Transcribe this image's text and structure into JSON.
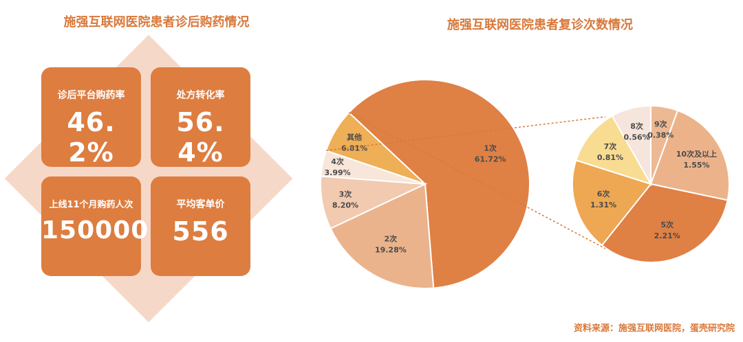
{
  "left_title": "施强互联网医院患者诊后购药情况",
  "right_title": "施强互联网医院患者复诊次数情况",
  "cards": [
    {
      "label": "诊后平台购药率",
      "value": "46. 2%"
    },
    {
      "label": "处方转化率",
      "value": "56. 4%"
    },
    {
      "label": "上线11个月购药人次",
      "value": "150000"
    },
    {
      "label": "平均客单价",
      "value": "556"
    }
  ],
  "source": "资料来源：施强互联网医院，蛋壳研究院",
  "colors": {
    "accent": "#d9783a",
    "card": "#dd7d40",
    "diamond": "#f6d8c8"
  },
  "chart_data": [
    {
      "type": "pie",
      "title": "施强互联网医院患者复诊次数情况",
      "slices": [
        {
          "name": "1次",
          "value": 61.72,
          "label": "61.72%",
          "color": "#df8045"
        },
        {
          "name": "2次",
          "value": 19.28,
          "label": "19.28%",
          "color": "#ebb38c"
        },
        {
          "name": "3次",
          "value": 8.2,
          "label": "8.20%",
          "color": "#f1cab0"
        },
        {
          "name": "4次",
          "value": 3.99,
          "label": "3.99%",
          "color": "#f8e6da"
        },
        {
          "name": "其他",
          "value": 6.81,
          "label": "6.81%",
          "color": "#eeaf57"
        }
      ]
    },
    {
      "type": "pie",
      "slices": [
        {
          "name": "9次",
          "value": 0.38,
          "label": "0.38%",
          "color": "#ecb993"
        },
        {
          "name": "10次及以上",
          "value": 1.55,
          "label": "1.55%",
          "color": "#ecb38a"
        },
        {
          "name": "5次",
          "value": 2.21,
          "label": "2.21%",
          "color": "#df8045"
        },
        {
          "name": "6次",
          "value": 1.31,
          "label": "1.31%",
          "color": "#eea752"
        },
        {
          "name": "7次",
          "value": 0.81,
          "label": "0.81%",
          "color": "#f8dc92"
        },
        {
          "name": "8次",
          "value": 0.56,
          "label": "0.56%",
          "color": "#f6e5dc"
        }
      ]
    }
  ]
}
